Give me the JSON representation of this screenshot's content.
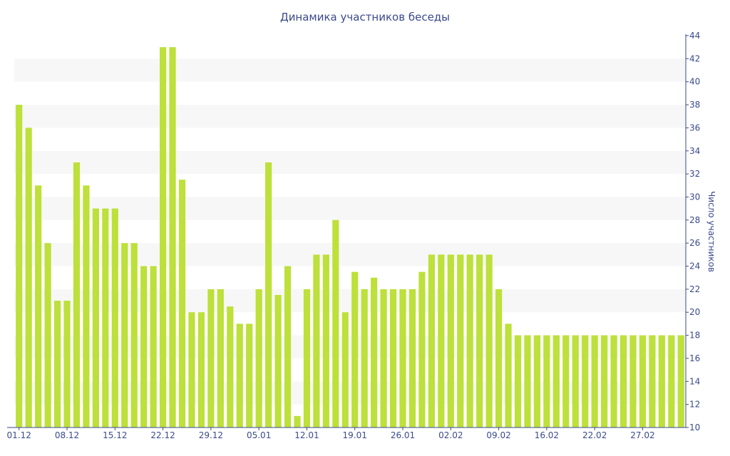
{
  "chart_data": {
    "type": "bar",
    "title": "Динамика участников беседы",
    "ylabel": "Число участников",
    "xlabel": "",
    "ylim": [
      10,
      44
    ],
    "y_ticks": [
      10,
      12,
      14,
      16,
      18,
      20,
      22,
      24,
      26,
      28,
      30,
      32,
      34,
      36,
      38,
      40,
      42,
      44
    ],
    "y_axis_position": "right",
    "grid": "alternating horizontal bands",
    "colors": {
      "bar": "#bde03a",
      "text": "#3a4a8c",
      "band": "#f7f7f7"
    },
    "x_tick_labels": [
      {
        "label": "01.12",
        "index": 0
      },
      {
        "label": "08.12",
        "index": 5
      },
      {
        "label": "15.12",
        "index": 10
      },
      {
        "label": "22.12",
        "index": 15
      },
      {
        "label": "29.12",
        "index": 20
      },
      {
        "label": "05.01",
        "index": 25
      },
      {
        "label": "12.01",
        "index": 30
      },
      {
        "label": "19.01",
        "index": 35
      },
      {
        "label": "26.01",
        "index": 40
      },
      {
        "label": "02.02",
        "index": 45
      },
      {
        "label": "09.02",
        "index": 50
      },
      {
        "label": "16.02",
        "index": 55
      },
      {
        "label": "22.02",
        "index": 60
      },
      {
        "label": "27.02",
        "index": 65
      }
    ],
    "values": [
      38,
      36,
      31,
      26,
      21,
      21,
      33,
      31,
      29,
      29,
      29,
      26,
      26,
      24,
      24,
      43,
      43,
      31.5,
      20,
      20,
      22,
      22,
      20.5,
      19,
      19,
      22,
      33,
      21.5,
      24,
      11,
      22,
      25,
      25,
      28,
      20,
      23.5,
      22,
      23,
      22,
      22,
      22,
      22,
      23.5,
      25,
      25,
      25,
      25,
      25,
      25,
      25,
      22,
      19,
      18,
      18,
      18,
      18,
      18,
      18,
      18,
      18,
      18,
      18,
      18,
      18,
      18,
      18,
      18,
      18,
      18,
      18
    ]
  }
}
